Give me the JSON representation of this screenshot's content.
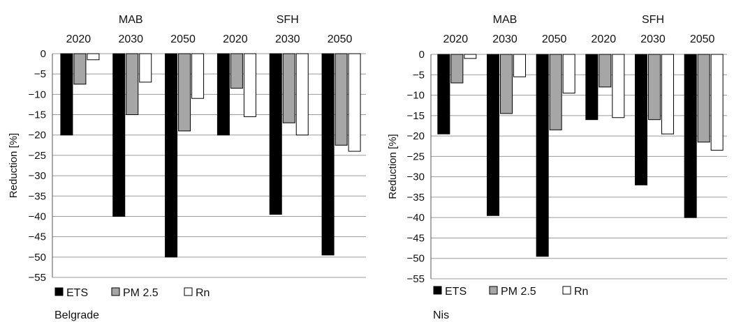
{
  "chart_data": [
    {
      "type": "bar",
      "city": "Belgrade",
      "ylabel": "Reduction [%]",
      "ylim": [
        -55,
        0
      ],
      "yticks": [
        0,
        -5,
        -10,
        -15,
        -20,
        -25,
        -30,
        -35,
        -40,
        -45,
        -50,
        -55
      ],
      "grid": true,
      "group_labels": [
        "MAB",
        "SFH"
      ],
      "categories": [
        "2020",
        "2030",
        "2050",
        "2020",
        "2030",
        "2050"
      ],
      "series": [
        {
          "name": "ETS",
          "color": "#000000",
          "values": [
            -20,
            -40,
            -50,
            -20,
            -39.5,
            -49.5
          ]
        },
        {
          "name": "PM 2.5",
          "color": "#a6a6a6",
          "values": [
            -7.5,
            -15,
            -19,
            -8.5,
            -17,
            -22.5
          ]
        },
        {
          "name": "Rn",
          "color": "#ffffff",
          "values": [
            -1.5,
            -7,
            -11,
            -15.5,
            -20,
            -24
          ]
        }
      ],
      "legend": [
        "ETS",
        "PM 2.5",
        "Rn"
      ]
    },
    {
      "type": "bar",
      "city": "Nis",
      "ylabel": "Reduction [%]",
      "ylim": [
        -55,
        0
      ],
      "yticks": [
        0,
        -5,
        -10,
        -15,
        -20,
        -25,
        -30,
        -35,
        -40,
        -45,
        -50,
        -55
      ],
      "grid": true,
      "group_labels": [
        "MAB",
        "SFH"
      ],
      "categories": [
        "2020",
        "2030",
        "2050",
        "2020",
        "2030",
        "2050"
      ],
      "series": [
        {
          "name": "ETS",
          "color": "#000000",
          "values": [
            -19.5,
            -39.5,
            -49.5,
            -16,
            -32,
            -40
          ]
        },
        {
          "name": "PM 2.5",
          "color": "#a6a6a6",
          "values": [
            -7,
            -14.5,
            -18.5,
            -8,
            -16,
            -21.5
          ]
        },
        {
          "name": "Rn",
          "color": "#ffffff",
          "values": [
            -1,
            -5.5,
            -9.5,
            -15.5,
            -19.5,
            -23.5
          ]
        }
      ],
      "legend": [
        "ETS",
        "PM 2.5",
        "Rn"
      ]
    }
  ]
}
